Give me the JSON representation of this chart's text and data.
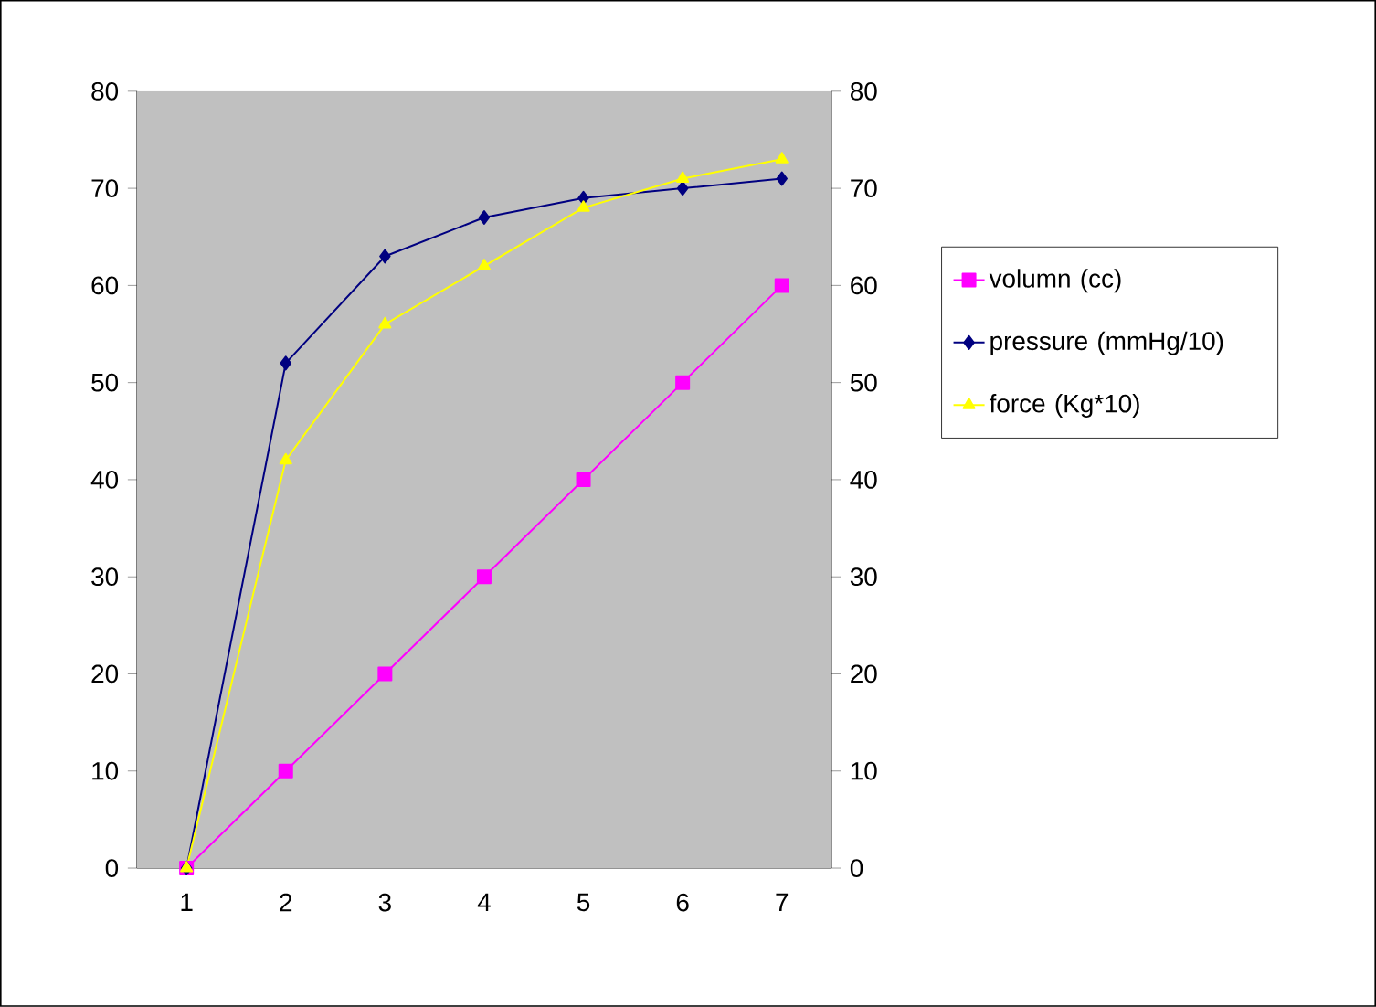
{
  "chart_data": {
    "type": "line",
    "categories": [
      "1",
      "2",
      "3",
      "4",
      "5",
      "6",
      "7"
    ],
    "series": [
      {
        "name": "volumn (cc)",
        "color": "#ff00ff",
        "marker": "square",
        "values": [
          0,
          10,
          20,
          30,
          40,
          50,
          60
        ]
      },
      {
        "name": "pressure (mmHg/10)",
        "color": "#000080",
        "marker": "diamond",
        "values": [
          0,
          52,
          63,
          67,
          69,
          70,
          71
        ]
      },
      {
        "name": "force (Kg*10)",
        "color": "#ffff00",
        "marker": "triangle",
        "values": [
          0,
          42,
          56,
          62,
          68,
          71,
          73
        ]
      }
    ],
    "ylim": [
      0,
      80
    ],
    "yticks": [
      0,
      10,
      20,
      30,
      40,
      50,
      60,
      70,
      80
    ],
    "y2lim": [
      0,
      80
    ],
    "y2ticks": [
      0,
      10,
      20,
      30,
      40,
      50,
      60,
      70,
      80
    ],
    "grid": false,
    "legend": "right",
    "line_style": "solid"
  }
}
